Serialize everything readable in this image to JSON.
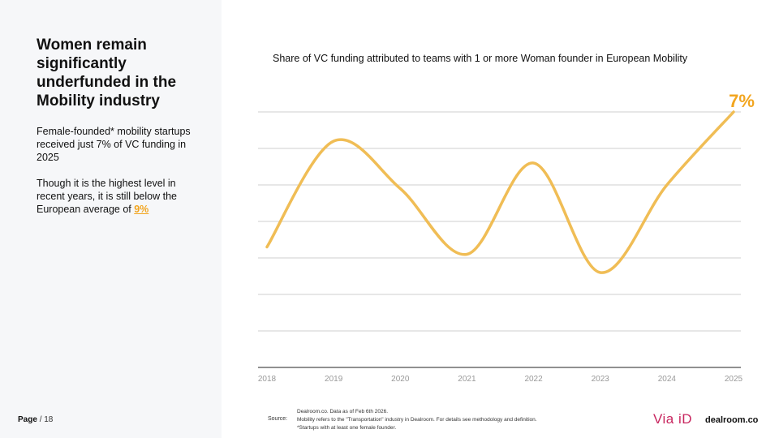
{
  "sidebar": {
    "headline": "Women remain significantly underfunded in the Mobility industry",
    "para1": "Female-founded* mobility startups received just 7% of VC funding in 2025",
    "para2_prefix": "Though it is the highest level in recent years, it is still below the European average of ",
    "para2_highlight": "9%"
  },
  "footer": {
    "page_label": "Page",
    "page_number": "/ 18",
    "source_label": "Source:",
    "source_lines": [
      "Dealroom.co.  Data as of Feb 6th 2026.",
      "Mobility refers to the \"Transportation\" industry in Dealroom. For details see methodology and definition.",
      "*Startups with at least one female founder."
    ],
    "logo_via": "Via iD",
    "logo_dealroom": "dealroom.co"
  },
  "colors": {
    "accent": "#f2a51f",
    "line": "#f0bd55",
    "grid": "#cfcfcf",
    "axis": "#222222",
    "brand_via": "#c8265f"
  },
  "chart_data": {
    "type": "line",
    "title": "Share of VC funding attributed to teams with 1 or more Woman founder in European Mobility",
    "categories": [
      "2018",
      "2019",
      "2020",
      "2021",
      "2022",
      "2023",
      "2024",
      "2025"
    ],
    "series": [
      {
        "name": "Share of VC funding",
        "values": [
          3.3,
          6.2,
          4.9,
          3.1,
          5.6,
          2.6,
          5.0,
          7.0
        ]
      }
    ],
    "end_label": "7%",
    "ylim": [
      0,
      7.0
    ],
    "grid": true,
    "xlabel": "",
    "ylabel": ""
  }
}
